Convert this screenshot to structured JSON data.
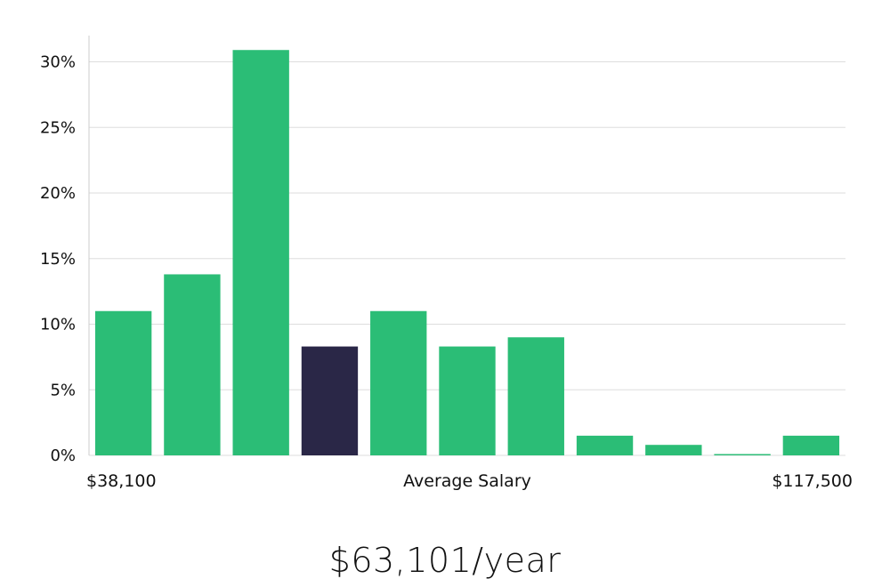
{
  "chart_data": {
    "type": "bar",
    "categories": [
      "1",
      "2",
      "3",
      "4",
      "5",
      "6",
      "7",
      "8",
      "9",
      "10",
      "11"
    ],
    "values": [
      11,
      13.8,
      30.9,
      8.3,
      11,
      8.3,
      9,
      1.5,
      0.8,
      0.1,
      1.5
    ],
    "highlight_index": 3,
    "ylim": [
      0,
      32
    ],
    "yticks": [
      0,
      5,
      10,
      15,
      20,
      25,
      30
    ],
    "ytick_labels": [
      "0%",
      "5%",
      "10%",
      "15%",
      "20%",
      "25%",
      "30%"
    ],
    "x_min_label": "$38,100",
    "x_center_label": "Average Salary",
    "x_max_label": "$117,500",
    "grid": true,
    "colors": {
      "bar": "#2bbd76",
      "highlight": "#2a2747",
      "grid": "#dddddd",
      "axis": "#cccccc"
    }
  },
  "salary": {
    "display": "$63,101/year"
  }
}
